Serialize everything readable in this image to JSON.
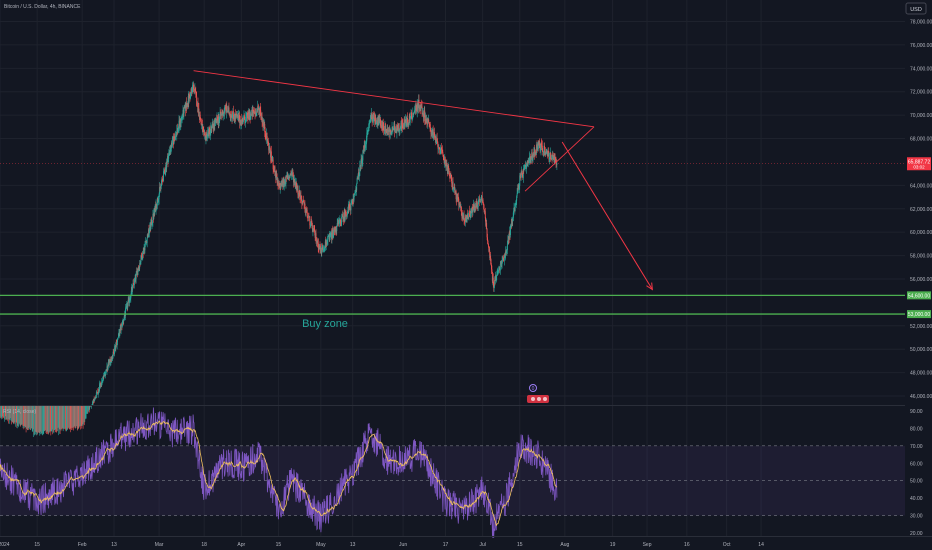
{
  "header": {
    "symbol_title": "Bitcoin / U.S. Dollar, 4h, BINANCE",
    "currency": "USD"
  },
  "price_axis": {
    "ticks": [
      "78,000.00",
      "76,000.00",
      "74,000.00",
      "72,000.00",
      "70,000.00",
      "68,000.00",
      "64,000.00",
      "62,000.00",
      "60,000.00",
      "58,000.00",
      "56,000.00",
      "52,000.00",
      "50,000.00",
      "48,000.00",
      "46,000.00"
    ],
    "tick_values": [
      78000,
      76000,
      74000,
      72000,
      70000,
      68000,
      64000,
      62000,
      60000,
      58000,
      56000,
      52000,
      50000,
      48000,
      46000
    ],
    "current_price_label": "65,887.72",
    "current_price_sub": "03:02",
    "current_price_value": 65887.72,
    "level_labels": [
      {
        "value": 54600,
        "text": "54,600.00"
      },
      {
        "value": 53000,
        "text": "53,000.00"
      }
    ]
  },
  "rsi": {
    "title": "RSI (14, close)",
    "ticks": [
      "90.00",
      "80.00",
      "70.00",
      "60.00",
      "50.00",
      "40.00",
      "30.00",
      "20.00"
    ],
    "tick_values": [
      90,
      80,
      70,
      60,
      50,
      40,
      30,
      20
    ],
    "overbought": 70,
    "oversold": 30
  },
  "time_axis": {
    "labels": [
      "2024",
      "15",
      "Feb",
      "13",
      "Mar",
      "18",
      "Apr",
      "15",
      "May",
      "13",
      "Jun",
      "17",
      "Jul",
      "15",
      "Aug",
      "19",
      "Sep",
      "16",
      "Oct",
      "14"
    ]
  },
  "annotations": {
    "buy_zone_label": "Buy zone",
    "event_badge": "0"
  },
  "colors": {
    "background": "#131722",
    "up": "#26a69a",
    "down": "#ef5350",
    "trendline": "#f23645",
    "support": "#4caf50",
    "rsi_line": "#7e57c2",
    "rsi_ma": "#f0c060",
    "rsi_band": "#7e57c2",
    "buy_zone_text": "#26a69a",
    "price_tag": "#f23645"
  },
  "chart_data": {
    "type": "candlestick",
    "title": "Bitcoin / U.S. Dollar, 4h, BINANCE",
    "ylabel": "USD",
    "ylim": [
      45000,
      79000
    ],
    "x": [
      "2024-01-01",
      "2024-01-15",
      "2024-02-01",
      "2024-02-13",
      "2024-02-28",
      "2024-03-05",
      "2024-03-14",
      "2024-03-18",
      "2024-03-26",
      "2024-04-01",
      "2024-04-08",
      "2024-04-15",
      "2024-04-20",
      "2024-05-01",
      "2024-05-13",
      "2024-05-20",
      "2024-05-27",
      "2024-06-03",
      "2024-06-07",
      "2024-06-17",
      "2024-06-24",
      "2024-07-01",
      "2024-07-05",
      "2024-07-10",
      "2024-07-15",
      "2024-07-22",
      "2024-07-29"
    ],
    "close": [
      44000,
      42500,
      43100,
      49800,
      61500,
      67000,
      72500,
      68000,
      70500,
      69500,
      70500,
      63800,
      65000,
      58400,
      62500,
      70000,
      68500,
      69500,
      71000,
      66000,
      61000,
      63000,
      55500,
      58500,
      64500,
      67500,
      65887.72
    ],
    "series": [
      {
        "name": "RSI (14, close)",
        "values": [
          56,
          38,
          52,
          72,
          85,
          78,
          80,
          45,
          62,
          58,
          65,
          33,
          50,
          28,
          55,
          78,
          60,
          62,
          68,
          38,
          32,
          45,
          25,
          40,
          70,
          65,
          45
        ]
      }
    ],
    "resistance_trendline": {
      "from": {
        "x": "2024-03-14",
        "y": 73800
      },
      "to": {
        "x": "2024-08-12",
        "y": 69000
      }
    },
    "support_trendline": {
      "from": {
        "x": "2024-07-17",
        "y": 63500
      },
      "to": {
        "x": "2024-08-12",
        "y": 69000
      }
    },
    "projection_arrow": {
      "from": {
        "x": "2024-07-31",
        "y": 67700
      },
      "to": {
        "x": "2024-09-03",
        "y": 55100
      }
    },
    "horizontal_levels": [
      54600,
      53000
    ],
    "buy_zone": [
      53000,
      54600
    ],
    "x_extent": [
      "2024-01-01",
      "2024-10-20"
    ]
  }
}
